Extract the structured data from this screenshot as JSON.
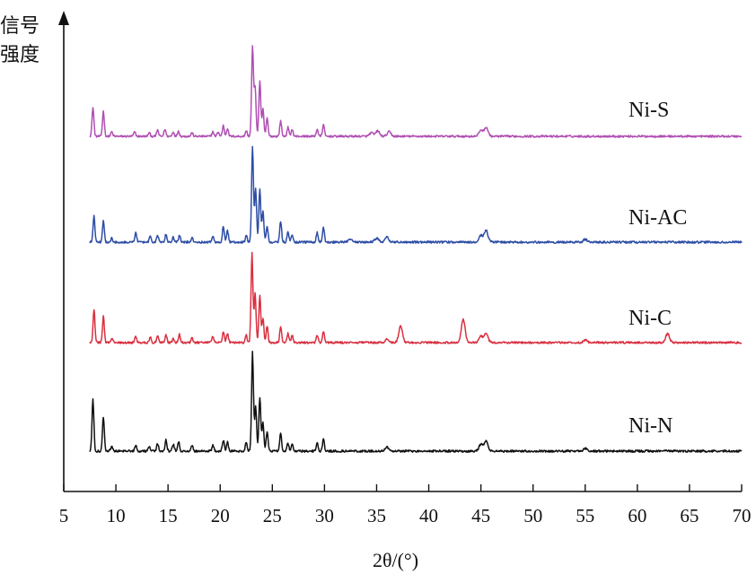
{
  "chart_data": {
    "type": "line",
    "title": "",
    "xlabel": "2θ/(°)",
    "ylabel": "信号强度",
    "xlim": [
      5,
      70
    ],
    "xticks": [
      5,
      10,
      15,
      20,
      25,
      30,
      35,
      40,
      45,
      50,
      55,
      60,
      65,
      70
    ],
    "yticks": [],
    "grid": false,
    "legend": "none",
    "series": [
      {
        "name": "Ni-S",
        "color": "#b04fb3",
        "baseline": 0,
        "peaks": [
          [
            7.8,
            0.32
          ],
          [
            8.8,
            0.28
          ],
          [
            9.6,
            0.05
          ],
          [
            11.8,
            0.05
          ],
          [
            13.2,
            0.04
          ],
          [
            14.0,
            0.07
          ],
          [
            14.7,
            0.08
          ],
          [
            15.5,
            0.05
          ],
          [
            16.0,
            0.06
          ],
          [
            17.3,
            0.04
          ],
          [
            19.3,
            0.05
          ],
          [
            19.8,
            0.05
          ],
          [
            20.3,
            0.12
          ],
          [
            20.7,
            0.09
          ],
          [
            22.5,
            0.06
          ],
          [
            23.1,
            1.0
          ],
          [
            23.35,
            0.55
          ],
          [
            23.8,
            0.62
          ],
          [
            24.1,
            0.3
          ],
          [
            24.5,
            0.2
          ],
          [
            25.8,
            0.17
          ],
          [
            26.5,
            0.1
          ],
          [
            26.9,
            0.08
          ],
          [
            29.3,
            0.08
          ],
          [
            29.9,
            0.13
          ],
          [
            34.5,
            0.04
          ],
          [
            35.1,
            0.06
          ],
          [
            36.2,
            0.05
          ],
          [
            45.0,
            0.07
          ],
          [
            45.5,
            0.1
          ]
        ]
      },
      {
        "name": "Ni-AC",
        "color": "#2e4ea6",
        "baseline": 0,
        "peaks": [
          [
            7.9,
            0.27
          ],
          [
            8.8,
            0.22
          ],
          [
            9.6,
            0.04
          ],
          [
            11.9,
            0.1
          ],
          [
            13.3,
            0.06
          ],
          [
            14.0,
            0.07
          ],
          [
            14.8,
            0.08
          ],
          [
            15.5,
            0.05
          ],
          [
            16.1,
            0.07
          ],
          [
            17.3,
            0.05
          ],
          [
            19.3,
            0.06
          ],
          [
            20.3,
            0.16
          ],
          [
            20.7,
            0.12
          ],
          [
            22.5,
            0.07
          ],
          [
            23.1,
            1.0
          ],
          [
            23.4,
            0.55
          ],
          [
            23.8,
            0.55
          ],
          [
            24.1,
            0.32
          ],
          [
            24.5,
            0.16
          ],
          [
            25.8,
            0.22
          ],
          [
            26.5,
            0.11
          ],
          [
            26.9,
            0.08
          ],
          [
            29.3,
            0.1
          ],
          [
            29.9,
            0.16
          ],
          [
            32.5,
            0.03
          ],
          [
            35.0,
            0.04
          ],
          [
            36.0,
            0.05
          ],
          [
            45.0,
            0.07
          ],
          [
            45.5,
            0.12
          ],
          [
            55.0,
            0.03
          ]
        ]
      },
      {
        "name": "Ni-C",
        "color": "#d93040",
        "baseline": 0,
        "peaks": [
          [
            7.9,
            0.37
          ],
          [
            8.8,
            0.29
          ],
          [
            9.6,
            0.05
          ],
          [
            11.9,
            0.07
          ],
          [
            13.3,
            0.06
          ],
          [
            14.0,
            0.08
          ],
          [
            14.8,
            0.09
          ],
          [
            15.5,
            0.05
          ],
          [
            16.1,
            0.09
          ],
          [
            17.3,
            0.05
          ],
          [
            19.3,
            0.07
          ],
          [
            20.3,
            0.12
          ],
          [
            20.7,
            0.1
          ],
          [
            22.5,
            0.08
          ],
          [
            23.05,
            1.0
          ],
          [
            23.35,
            0.55
          ],
          [
            23.8,
            0.52
          ],
          [
            24.1,
            0.27
          ],
          [
            24.5,
            0.18
          ],
          [
            25.8,
            0.18
          ],
          [
            26.5,
            0.1
          ],
          [
            26.9,
            0.08
          ],
          [
            29.3,
            0.08
          ],
          [
            29.9,
            0.13
          ],
          [
            36.0,
            0.04
          ],
          [
            37.3,
            0.18
          ],
          [
            43.3,
            0.26
          ],
          [
            45.0,
            0.07
          ],
          [
            45.5,
            0.1
          ],
          [
            55.0,
            0.03
          ],
          [
            62.9,
            0.1
          ]
        ]
      },
      {
        "name": "Ni-N",
        "color": "#111111",
        "baseline": 0,
        "peaks": [
          [
            7.8,
            0.52
          ],
          [
            8.8,
            0.35
          ],
          [
            9.6,
            0.05
          ],
          [
            11.9,
            0.06
          ],
          [
            13.2,
            0.05
          ],
          [
            14.0,
            0.08
          ],
          [
            14.8,
            0.11
          ],
          [
            15.5,
            0.07
          ],
          [
            16.0,
            0.1
          ],
          [
            17.3,
            0.06
          ],
          [
            19.3,
            0.06
          ],
          [
            20.3,
            0.11
          ],
          [
            20.7,
            0.09
          ],
          [
            22.5,
            0.09
          ],
          [
            23.1,
            1.0
          ],
          [
            23.4,
            0.45
          ],
          [
            23.8,
            0.55
          ],
          [
            24.1,
            0.3
          ],
          [
            24.5,
            0.2
          ],
          [
            25.8,
            0.18
          ],
          [
            26.5,
            0.08
          ],
          [
            26.9,
            0.07
          ],
          [
            29.3,
            0.08
          ],
          [
            29.9,
            0.12
          ],
          [
            36.0,
            0.04
          ],
          [
            45.0,
            0.07
          ],
          [
            45.5,
            0.1
          ],
          [
            55.0,
            0.03
          ]
        ]
      }
    ]
  }
}
